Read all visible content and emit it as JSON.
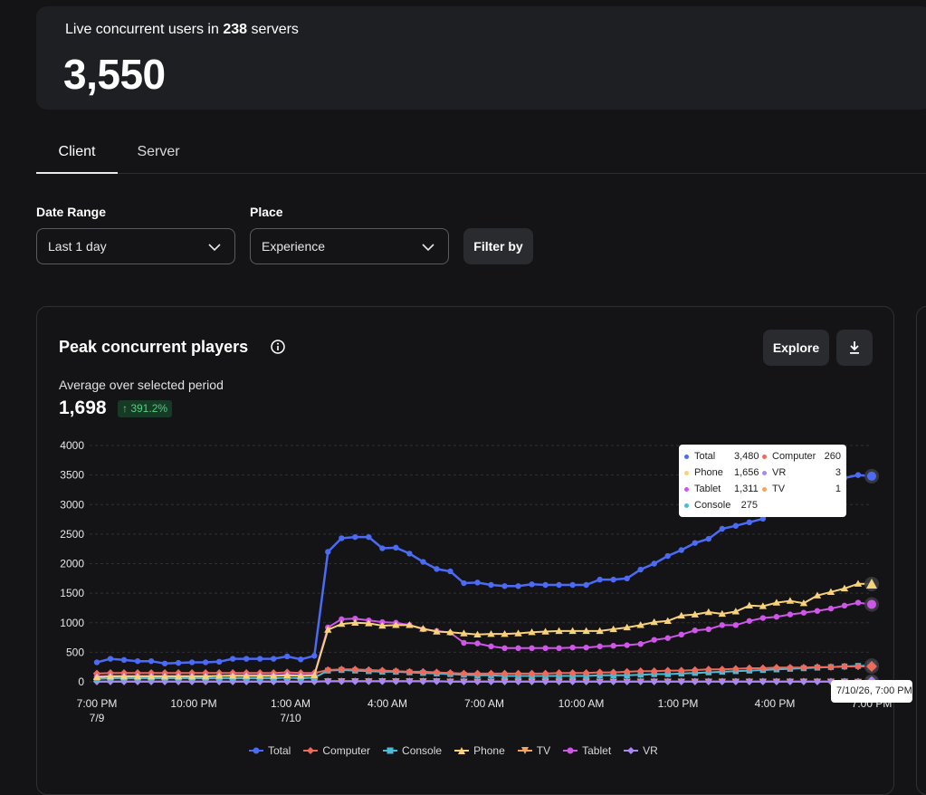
{
  "summary": {
    "caption_prefix": "Live concurrent users in ",
    "servers": "238",
    "caption_suffix": " servers",
    "value": "3,550"
  },
  "tabs": [
    {
      "label": "Client",
      "active": true
    },
    {
      "label": "Server",
      "active": false
    }
  ],
  "filters": {
    "date_range_label": "Date Range",
    "date_range_value": "Last 1 day",
    "place_label": "Place",
    "place_value": "Experience",
    "filter_button": "Filter by"
  },
  "chart_card": {
    "title": "Peak concurrent players",
    "explore_label": "Explore",
    "average_label": "Average over selected period",
    "average_value": "1,698",
    "delta": "↑ 391.2%"
  },
  "tooltip": {
    "rows_left": [
      {
        "name": "Total",
        "value": "3,480",
        "color": "#4b6bf5"
      },
      {
        "name": "Phone",
        "value": "1,656",
        "color": "#f7d27a"
      },
      {
        "name": "Tablet",
        "value": "1,311",
        "color": "#cf56e8"
      },
      {
        "name": "Console",
        "value": "275",
        "color": "#4bbbd6"
      }
    ],
    "rows_right": [
      {
        "name": "Computer",
        "value": "260",
        "color": "#f06a5b"
      },
      {
        "name": "VR",
        "value": "3",
        "color": "#a988f4"
      },
      {
        "name": "TV",
        "value": "1",
        "color": "#f5a25d"
      }
    ],
    "date": "7/10/26, 7:00 PM"
  },
  "chart_data": {
    "type": "line",
    "title": "Peak concurrent players",
    "x_tick_labels": [
      "7:00 PM\n7/9",
      "10:00 PM",
      "1:00 AM\n7/10",
      "4:00 AM",
      "7:00 AM",
      "10:00 AM",
      "1:00 PM",
      "4:00 PM",
      "7:00 PM"
    ],
    "ylim": [
      0,
      4000
    ],
    "y_ticks": [
      0,
      500,
      1000,
      1500,
      2000,
      2500,
      3000,
      3500,
      4000
    ],
    "x_hours": "hours since 7:00 PM 7/9, step 0.5",
    "series": [
      {
        "name": "Total",
        "color": "#4b6bf5",
        "marker": "circle",
        "values": [
          330,
          390,
          370,
          350,
          350,
          310,
          320,
          330,
          330,
          340,
          390,
          390,
          390,
          390,
          430,
          380,
          440,
          2200,
          2430,
          2450,
          2450,
          2260,
          2270,
          2170,
          2030,
          1910,
          1870,
          1670,
          1680,
          1640,
          1620,
          1620,
          1650,
          1640,
          1640,
          1640,
          1640,
          1730,
          1730,
          1750,
          1900,
          2000,
          2130,
          2230,
          2350,
          2420,
          2590,
          2640,
          2700,
          2760,
          3000,
          3100,
          3200,
          3300,
          3400,
          3450,
          3500,
          3480
        ]
      },
      {
        "name": "Computer",
        "color": "#f06a5b",
        "marker": "diamond",
        "values": [
          140,
          150,
          150,
          150,
          150,
          150,
          150,
          150,
          150,
          150,
          150,
          150,
          150,
          150,
          160,
          150,
          150,
          200,
          210,
          210,
          200,
          190,
          180,
          170,
          170,
          160,
          150,
          140,
          140,
          140,
          140,
          140,
          140,
          140,
          150,
          150,
          150,
          160,
          160,
          170,
          180,
          180,
          190,
          190,
          200,
          210,
          210,
          220,
          230,
          230,
          240,
          240,
          240,
          250,
          250,
          260,
          260,
          260
        ]
      },
      {
        "name": "Console",
        "color": "#4bbbd6",
        "marker": "square",
        "values": [
          50,
          60,
          60,
          60,
          60,
          60,
          60,
          60,
          60,
          60,
          60,
          60,
          60,
          60,
          70,
          60,
          70,
          190,
          200,
          190,
          180,
          170,
          170,
          160,
          150,
          140,
          130,
          120,
          110,
          110,
          100,
          100,
          100,
          100,
          100,
          100,
          100,
          110,
          110,
          110,
          120,
          130,
          130,
          140,
          150,
          160,
          170,
          180,
          190,
          200,
          210,
          220,
          230,
          240,
          250,
          260,
          270,
          275
        ]
      },
      {
        "name": "Phone",
        "color": "#f7d27a",
        "marker": "triangle",
        "values": [
          80,
          90,
          90,
          90,
          90,
          90,
          90,
          90,
          90,
          100,
          100,
          100,
          100,
          100,
          110,
          100,
          110,
          880,
          980,
          1000,
          990,
          950,
          960,
          960,
          900,
          850,
          840,
          820,
          800,
          810,
          810,
          820,
          840,
          850,
          860,
          860,
          860,
          860,
          890,
          920,
          960,
          1010,
          1030,
          1120,
          1140,
          1180,
          1150,
          1190,
          1290,
          1280,
          1340,
          1370,
          1330,
          1460,
          1520,
          1580,
          1660,
          1656
        ]
      },
      {
        "name": "TV",
        "color": "#f5a25d",
        "marker": "triangle-down",
        "values": [
          5,
          5,
          5,
          5,
          5,
          5,
          5,
          5,
          5,
          5,
          5,
          5,
          5,
          5,
          5,
          5,
          5,
          10,
          10,
          10,
          10,
          10,
          10,
          10,
          10,
          10,
          5,
          5,
          5,
          5,
          5,
          5,
          5,
          5,
          5,
          5,
          5,
          5,
          5,
          5,
          5,
          5,
          5,
          5,
          5,
          5,
          5,
          5,
          5,
          5,
          5,
          5,
          5,
          5,
          5,
          5,
          1,
          1
        ]
      },
      {
        "name": "Tablet",
        "color": "#cf56e8",
        "marker": "circle",
        "values": [
          90,
          100,
          100,
          100,
          100,
          100,
          100,
          100,
          100,
          100,
          110,
          110,
          110,
          110,
          120,
          110,
          120,
          920,
          1060,
          1070,
          1040,
          1010,
          1000,
          960,
          890,
          860,
          830,
          660,
          650,
          600,
          570,
          570,
          570,
          570,
          570,
          580,
          580,
          600,
          610,
          620,
          640,
          710,
          740,
          800,
          870,
          890,
          960,
          960,
          1030,
          1080,
          1100,
          1140,
          1170,
          1200,
          1240,
          1290,
          1340,
          1311
        ]
      },
      {
        "name": "VR",
        "color": "#a988f4",
        "marker": "diamond",
        "values": [
          5,
          5,
          5,
          5,
          5,
          5,
          5,
          5,
          5,
          5,
          5,
          5,
          5,
          5,
          5,
          5,
          5,
          8,
          8,
          8,
          8,
          8,
          8,
          8,
          8,
          8,
          5,
          5,
          5,
          5,
          5,
          5,
          5,
          5,
          5,
          5,
          5,
          5,
          5,
          5,
          5,
          5,
          5,
          5,
          5,
          5,
          5,
          5,
          5,
          5,
          5,
          5,
          5,
          5,
          5,
          5,
          3,
          3
        ]
      }
    ],
    "legend_position": "bottom",
    "grid": true
  }
}
